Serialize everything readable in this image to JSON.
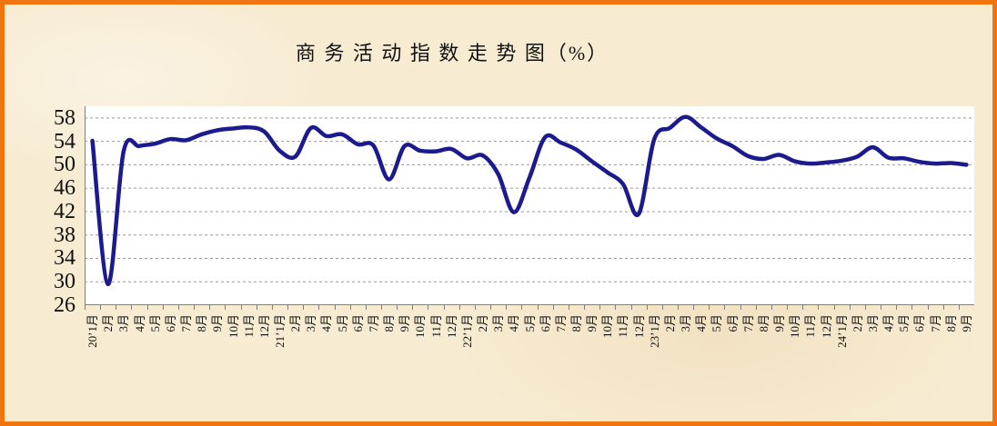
{
  "title": "商 务 活 动 指 数 走 势 图（%）",
  "colors": {
    "frame_border": "#f0750f",
    "background": "#f7ebd1",
    "plot_background": "#ffffff",
    "gridline": "#999999",
    "axis": "#808080",
    "line": "#1b1b8f",
    "text": "#111111"
  },
  "chart_data": {
    "type": "line",
    "title": "商 务 活 动 指 数 走 势 图（%）",
    "smooth": true,
    "grid": "horizontal-dashed",
    "legend_position": "none",
    "ylim": [
      26,
      60
    ],
    "yticks": [
      26,
      30,
      34,
      38,
      42,
      46,
      50,
      54,
      58
    ],
    "x_labels": [
      "20’1月",
      "2月",
      "3月",
      "4月",
      "5月",
      "6月",
      "7月",
      "8月",
      "9月",
      "10月",
      "11月",
      "12月",
      "21’1月",
      "2月",
      "3月",
      "4月",
      "5月",
      "6月",
      "7月",
      "8月",
      "9月",
      "10月",
      "11月",
      "12月",
      "22’1月",
      "2月",
      "3月",
      "4月",
      "5月",
      "6月",
      "7月",
      "8月",
      "9月",
      "10月",
      "11月",
      "12月",
      "23’1月",
      "2月",
      "3月",
      "4月",
      "5月",
      "6月",
      "7月",
      "8月",
      "9月",
      "10月",
      "11月",
      "12月",
      "24’1月",
      "2月",
      "3月",
      "4月",
      "5月",
      "6月",
      "7月",
      "8月",
      "9月"
    ],
    "series": [
      {
        "name": "商务活动指数",
        "color": "#1b1b8f",
        "values": [
          54.1,
          29.6,
          52.3,
          53.2,
          53.6,
          54.4,
          54.2,
          55.2,
          55.9,
          56.2,
          56.4,
          55.7,
          52.4,
          51.4,
          56.3,
          54.9,
          55.2,
          53.5,
          53.3,
          47.5,
          53.2,
          52.4,
          52.3,
          52.7,
          51.1,
          51.6,
          48.4,
          41.9,
          47.8,
          54.7,
          53.8,
          52.6,
          50.6,
          48.7,
          46.7,
          41.6,
          54.4,
          56.3,
          58.2,
          56.4,
          54.5,
          53.2,
          51.5,
          51.0,
          51.7,
          50.6,
          50.2,
          50.4,
          50.7,
          51.4,
          53.0,
          51.2,
          51.1,
          50.5,
          50.2,
          50.3,
          50.0
        ]
      }
    ]
  }
}
